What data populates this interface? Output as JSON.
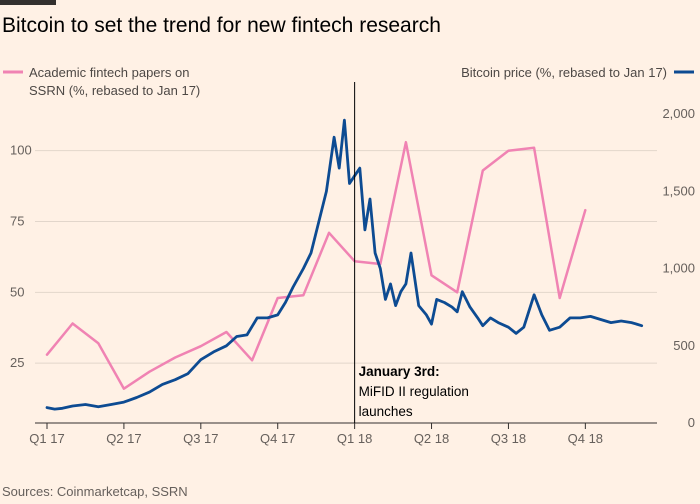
{
  "title": "Bitcoin to set the trend for new fintech research",
  "source": "Sources: Coinmarketcap, SSRN",
  "chart_data": {
    "type": "line",
    "title": "Bitcoin to set the trend for new fintech research",
    "x_tick_labels": [
      "Q1 17",
      "Q2 17",
      "Q3 17",
      "Q4 17",
      "Q1 18",
      "Q2 18",
      "Q3 18",
      "Q4 18"
    ],
    "x_range": [
      0,
      23.6
    ],
    "grid": true,
    "left_axis": {
      "ticks": [
        25,
        50,
        75,
        100
      ],
      "ylim": [
        5,
        120
      ]
    },
    "right_axis": {
      "ticks": [
        0,
        500,
        1000,
        1500,
        2000
      ],
      "tick_labels": [
        "0",
        "500",
        "1,000",
        "1,500",
        "2,000"
      ],
      "ylim": [
        0,
        2000
      ]
    },
    "legend": {
      "left_lines": [
        "Academic fintech papers on",
        "SSRN (%, rebased to Jan 17)"
      ],
      "right_line": "Bitcoin price (%, rebased to Jan 17)",
      "placement": "top"
    },
    "annotation": {
      "x": 12,
      "title": "January 3rd:",
      "lines": [
        "MiFID II regulation",
        "launches"
      ]
    },
    "series": [
      {
        "name": "Academic fintech papers on SSRN (%, rebased to Jan 17)",
        "axis": "left",
        "color": "#f083b3",
        "x": [
          0,
          1,
          2,
          3,
          4,
          5,
          6,
          7,
          8,
          9,
          10,
          11,
          12,
          13,
          14,
          15,
          16,
          17,
          18,
          19,
          20,
          21,
          22
        ],
        "values": [
          28,
          39,
          32,
          16,
          22,
          27,
          31,
          36,
          26,
          48,
          49,
          71,
          61,
          60,
          103,
          56,
          50,
          93,
          100,
          101,
          48,
          79,
          null
        ]
      },
      {
        "name": "Bitcoin price (%, rebased to Jan 17)",
        "axis": "right",
        "color": "#0d4b92",
        "x": [
          0,
          0.3,
          0.6,
          1,
          1.5,
          2,
          2.5,
          3,
          3.5,
          4,
          4.5,
          5,
          5.5,
          6,
          6.5,
          7,
          7.4,
          7.8,
          8.2,
          8.6,
          9,
          9.3,
          9.6,
          10,
          10.3,
          10.6,
          10.9,
          11.2,
          11.4,
          11.6,
          11.8,
          12,
          12.2,
          12.4,
          12.6,
          12.8,
          13,
          13.2,
          13.4,
          13.6,
          13.8,
          14,
          14.2,
          14.5,
          14.8,
          15,
          15.2,
          15.5,
          15.8,
          16,
          16.2,
          16.5,
          16.8,
          17,
          17.3,
          17.6,
          18,
          18.3,
          18.6,
          19,
          19.3,
          19.6,
          20,
          20.4,
          20.8,
          21.2,
          21.6,
          22,
          22.4,
          22.8,
          23,
          23.2
        ],
        "values": [
          100,
          90,
          95,
          110,
          120,
          105,
          120,
          135,
          165,
          200,
          250,
          280,
          320,
          410,
          460,
          500,
          560,
          570,
          680,
          680,
          700,
          780,
          880,
          1000,
          1100,
          1300,
          1500,
          1850,
          1650,
          1960,
          1550,
          1600,
          1650,
          1250,
          1450,
          1100,
          1000,
          800,
          900,
          760,
          850,
          900,
          1100,
          760,
          700,
          640,
          800,
          780,
          750,
          720,
          850,
          750,
          680,
          630,
          680,
          650,
          620,
          580,
          620,
          830,
          700,
          600,
          620,
          680,
          680,
          690,
          670,
          650,
          660,
          650,
          640,
          630
        ]
      }
    ]
  }
}
